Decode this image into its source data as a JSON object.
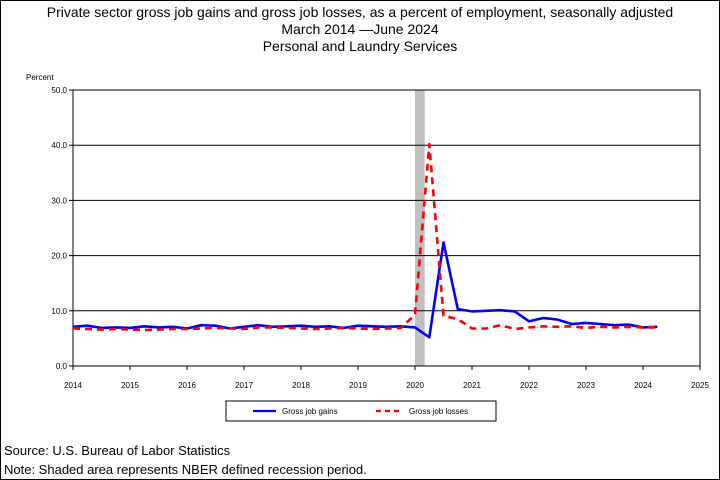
{
  "header": {
    "title_line1": "Private sector gross job gains and gross job losses, as a percent of employment, seasonally adjusted",
    "title_line2": "March 2014 —June 2024",
    "title_line3": "Personal and Laundry Services"
  },
  "footer": {
    "source": "Source: U.S. Bureau of Labor Statistics",
    "note": "Note: Shaded area represents NBER defined recession period."
  },
  "colors": {
    "gains": "#0000ff",
    "losses": "#ff0000",
    "recession": "#c0c0c0"
  },
  "chart_data": {
    "type": "line",
    "title": "Private sector gross job gains and gross job losses, as a percent of employment, seasonally adjusted",
    "subtitle": "March 2014 —June 2024 Personal and Laundry Services",
    "ylabel": "Percent",
    "xlabel": "",
    "xlim": [
      2014,
      2025
    ],
    "ylim": [
      0,
      50
    ],
    "ytick_labels": [
      "0.0",
      "10.0",
      "20.0",
      "30.0",
      "40.0",
      "50.0"
    ],
    "xtick_labels": [
      "2014",
      "2015",
      "2016",
      "2017",
      "2018",
      "2019",
      "2020",
      "2021",
      "2022",
      "2023",
      "2024",
      "2025"
    ],
    "grid": "horizontal",
    "legend_position": "bottom",
    "recession_band": [
      2020.0,
      2020.17
    ],
    "x": [
      2014.0,
      2014.25,
      2014.5,
      2014.75,
      2015.0,
      2015.25,
      2015.5,
      2015.75,
      2016.0,
      2016.25,
      2016.5,
      2016.75,
      2017.0,
      2017.25,
      2017.5,
      2017.75,
      2018.0,
      2018.25,
      2018.5,
      2018.75,
      2019.0,
      2019.25,
      2019.5,
      2019.75,
      2020.0,
      2020.25,
      2020.5,
      2020.75,
      2021.0,
      2021.25,
      2021.5,
      2021.75,
      2022.0,
      2022.25,
      2022.5,
      2022.75,
      2023.0,
      2023.25,
      2023.5,
      2023.75,
      2024.0,
      2024.25
    ],
    "series": [
      {
        "name": "Gross job gains",
        "values": [
          7.1,
          7.3,
          6.9,
          7.0,
          6.9,
          7.2,
          7.0,
          7.1,
          6.8,
          7.4,
          7.3,
          6.8,
          7.1,
          7.4,
          7.1,
          7.2,
          7.3,
          7.1,
          7.2,
          6.9,
          7.3,
          7.2,
          7.1,
          7.2,
          7.0,
          5.2,
          22.4,
          10.3,
          9.9,
          10.0,
          10.1,
          9.9,
          8.1,
          8.7,
          8.4,
          7.6,
          7.8,
          7.6,
          7.4,
          7.5,
          7.0,
          7.1
        ],
        "style": "solid"
      },
      {
        "name": "Gross job losses",
        "values": [
          6.8,
          6.7,
          6.6,
          6.7,
          6.6,
          6.5,
          6.6,
          6.7,
          6.7,
          6.8,
          6.9,
          6.8,
          6.7,
          7.0,
          7.0,
          6.9,
          6.8,
          6.7,
          6.8,
          6.9,
          6.8,
          6.7,
          6.8,
          6.9,
          9.3,
          40.2,
          9.1,
          8.5,
          6.8,
          6.8,
          7.4,
          6.7,
          7.0,
          7.2,
          7.1,
          7.2,
          6.9,
          7.1,
          7.0,
          7.1,
          7.0,
          7.0
        ],
        "style": "dashed"
      }
    ]
  }
}
